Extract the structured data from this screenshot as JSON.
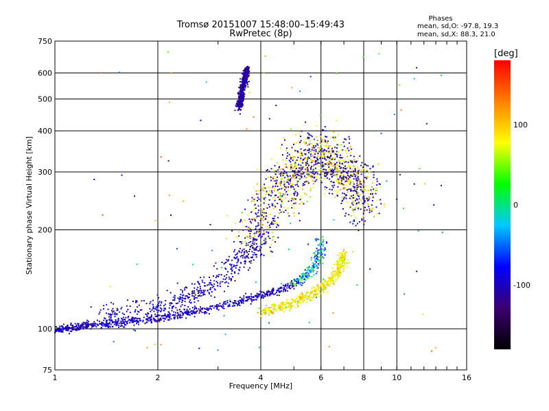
{
  "title": "Tromsø 20151007 15:48:00–15:49:43",
  "subtitle": "RwPretec (8p)",
  "phases": {
    "heading": "Phases",
    "line_o": "mean, sd,O:  -97.8,  19.3",
    "line_x": "mean, sd,X:   88.3,  21.0"
  },
  "chart_data": {
    "type": "scatter",
    "title": "Tromsø 20151007 15:48:00–15:49:43",
    "subtitle": "RwPretec (8p)",
    "xlabel": "Frequency [MHz]",
    "ylabel": "Stationary phase Virtual Height [km]",
    "x_scale": "log",
    "y_scale": "log",
    "xlim": [
      1,
      16
    ],
    "ylim": [
      75,
      750
    ],
    "x_ticks": [
      1,
      2,
      4,
      6,
      8,
      10,
      16
    ],
    "x_tick_labels": [
      "1",
      "2",
      "4",
      "6",
      "8",
      "10",
      "16"
    ],
    "y_ticks": [
      75,
      100,
      200,
      300,
      400,
      500,
      600,
      750
    ],
    "y_tick_labels": [
      "75",
      "100",
      "200",
      "300",
      "400",
      "500",
      "600",
      "750"
    ],
    "grid": true,
    "colorbar": {
      "label": "[deg]",
      "range": [
        -180,
        180
      ],
      "ticks": [
        100,
        0,
        -100
      ],
      "tick_labels": [
        "100",
        "0",
        "-100"
      ],
      "colors": [
        "#000000",
        "#3c0070",
        "#0000ff",
        "#00c8ff",
        "#00ff00",
        "#ffff00",
        "#ff8000",
        "#ff0000"
      ]
    },
    "series": [
      {
        "values_description": "O-mode trace",
        "x": [
          1.0,
          1.1,
          1.2,
          1.3,
          1.5,
          1.7,
          2.0,
          2.3,
          2.6,
          3.0,
          3.4,
          3.8,
          4.2,
          4.7,
          5.2,
          5.6,
          5.9,
          6.0
        ],
        "y": [
          99,
          100,
          102,
          103,
          104,
          106,
          107,
          110,
          113,
          117,
          120,
          124,
          128,
          133,
          140,
          150,
          165,
          190
        ]
      },
      {
        "values_description": "upper O-mode trace",
        "x": [
          1.4,
          1.6,
          1.9,
          2.2,
          2.5,
          2.8,
          3.1,
          3.4,
          3.8,
          4.1
        ],
        "y": [
          110,
          112,
          115,
          120,
          126,
          134,
          145,
          158,
          175,
          200
        ]
      },
      {
        "values_description": "X-mode trace",
        "x": [
          4.0,
          4.5,
          5.0,
          5.5,
          6.0,
          6.4,
          6.7,
          6.9,
          7.0
        ],
        "y": [
          112,
          116,
          120,
          126,
          133,
          140,
          148,
          158,
          170
        ]
      },
      {
        "values_description": "F2 spread echoes",
        "x": [
          3.7,
          4.0,
          4.4,
          4.8,
          5.1,
          5.4,
          5.8,
          6.2,
          6.6,
          7.0,
          7.4,
          7.8,
          8.2
        ],
        "y": [
          190,
          220,
          250,
          280,
          300,
          320,
          340,
          330,
          320,
          300,
          280,
          260,
          250
        ]
      },
      {
        "values_description": "interference column",
        "x": [
          3.45,
          3.5,
          3.55,
          3.6,
          3.65
        ],
        "y": [
          470,
          500,
          540,
          580,
          620
        ]
      }
    ]
  }
}
